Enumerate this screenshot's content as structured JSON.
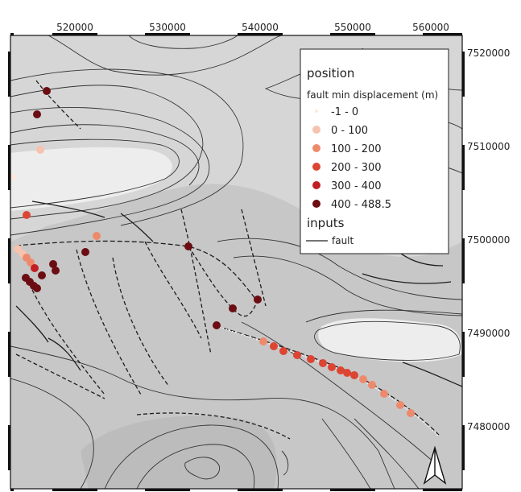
{
  "map": {
    "x_ticks": [
      "520000",
      "530000",
      "540000",
      "550000",
      "560000"
    ],
    "y_ticks": [
      "7520000",
      "7510000",
      "7500000",
      "7490000",
      "7480000"
    ]
  },
  "legend": {
    "title": "position",
    "subtitle": "fault min displacement (m)",
    "classes": [
      {
        "label": "-1 - 0",
        "color": "#fbe9df"
      },
      {
        "label": "0 - 100",
        "color": "#f6c3ae"
      },
      {
        "label": "100 - 200",
        "color": "#ee8a6c"
      },
      {
        "label": "200 - 300",
        "color": "#dd4432"
      },
      {
        "label": "300 - 400",
        "color": "#c21f22"
      },
      {
        "label": "400 - 488.5",
        "color": "#6b0d12"
      }
    ],
    "inputs_title": "inputs",
    "inputs_items": [
      {
        "label": "fault"
      }
    ]
  },
  "north_arrow": {
    "icon": "north-arrow-icon"
  },
  "colors": {
    "background": "#c7c7c7",
    "light_area": "#ededed",
    "contour": "#333333",
    "fault": "#1e1e1e"
  }
}
